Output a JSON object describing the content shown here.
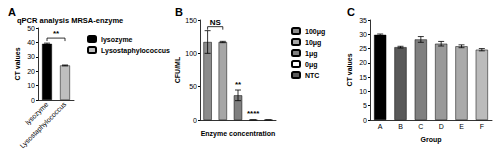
{
  "chart_data": [
    {
      "type": "bar",
      "panel": "A",
      "title": "qPCR analysis MRSA-enzyme",
      "y_label": "CT values",
      "categories": [
        "lysozyme",
        "Lysostaphylococcus"
      ],
      "series": [
        {
          "name": "lysozyme",
          "color": "#000000",
          "values": [
            39,
            null
          ],
          "errors": [
            0.5,
            null
          ]
        },
        {
          "name": "Lysostaphylococcus",
          "color": "#bfbfbf",
          "values": [
            null,
            24
          ],
          "errors": [
            null,
            0.3
          ]
        }
      ],
      "ylim": [
        0,
        50
      ],
      "yticks": [
        0,
        10,
        20,
        30,
        40,
        50
      ],
      "grid": false,
      "legend": "right",
      "annotations": [
        {
          "text": "**",
          "from": "lysozyme",
          "to": "Lysostaphylococcus",
          "y": 43
        }
      ]
    },
    {
      "type": "bar",
      "panel": "B",
      "x_label": "Enzyme concentration",
      "y_label": "CFU/ML",
      "categories": [
        "100μg",
        "10μg",
        "1μg",
        "0μg",
        "NTC"
      ],
      "series": [
        {
          "name": "100μg",
          "color": "#8c8c8c",
          "values": [
            117,
            null,
            null,
            null,
            null
          ],
          "errors": [
            17,
            null,
            null,
            null,
            null
          ]
        },
        {
          "name": "10μg",
          "color": "#a6a6a6",
          "values": [
            null,
            117,
            null,
            null,
            null
          ],
          "errors": [
            null,
            1,
            null,
            null,
            null
          ]
        },
        {
          "name": "1μg",
          "color": "#7f7f7f",
          "values": [
            null,
            null,
            37,
            null,
            null
          ],
          "errors": [
            null,
            null,
            8,
            null,
            null
          ]
        },
        {
          "name": "0μg",
          "color": "#ffffff",
          "values": [
            null,
            null,
            null,
            0,
            null
          ],
          "errors": [
            null,
            null,
            null,
            0,
            null
          ]
        },
        {
          "name": "NTC",
          "color": "#595959",
          "values": [
            null,
            null,
            null,
            null,
            0
          ],
          "errors": [
            null,
            null,
            null,
            null,
            0
          ]
        }
      ],
      "ylim": [
        0,
        150
      ],
      "yticks": [
        0,
        50,
        100,
        150
      ],
      "grid": false,
      "legend": "right",
      "tick_labels": "y",
      "annotations": [
        {
          "text": "NS",
          "from": "100μg",
          "to": "10μg",
          "y": 140
        },
        {
          "text": "**",
          "at": "1μg",
          "y": 48
        },
        {
          "text": "****",
          "at": "0μg",
          "y": 4
        }
      ]
    },
    {
      "type": "bar",
      "panel": "C",
      "x_label": "Group",
      "y_label": "CT values",
      "categories": [
        "A",
        "B",
        "C",
        "D",
        "E",
        "F"
      ],
      "values": [
        29.8,
        25.5,
        28.2,
        26.7,
        25.8,
        24.6
      ],
      "errors": [
        0.3,
        0.3,
        1,
        0.8,
        0.5,
        0.4
      ],
      "colors": [
        "#000000",
        "#595959",
        "#7f7f7f",
        "#999999",
        "#aaaaaa",
        "#bbbbbb"
      ],
      "ylim": [
        0,
        35
      ],
      "yticks": [
        0,
        5,
        10,
        15,
        20,
        25,
        30,
        35
      ],
      "grid": false
    }
  ]
}
